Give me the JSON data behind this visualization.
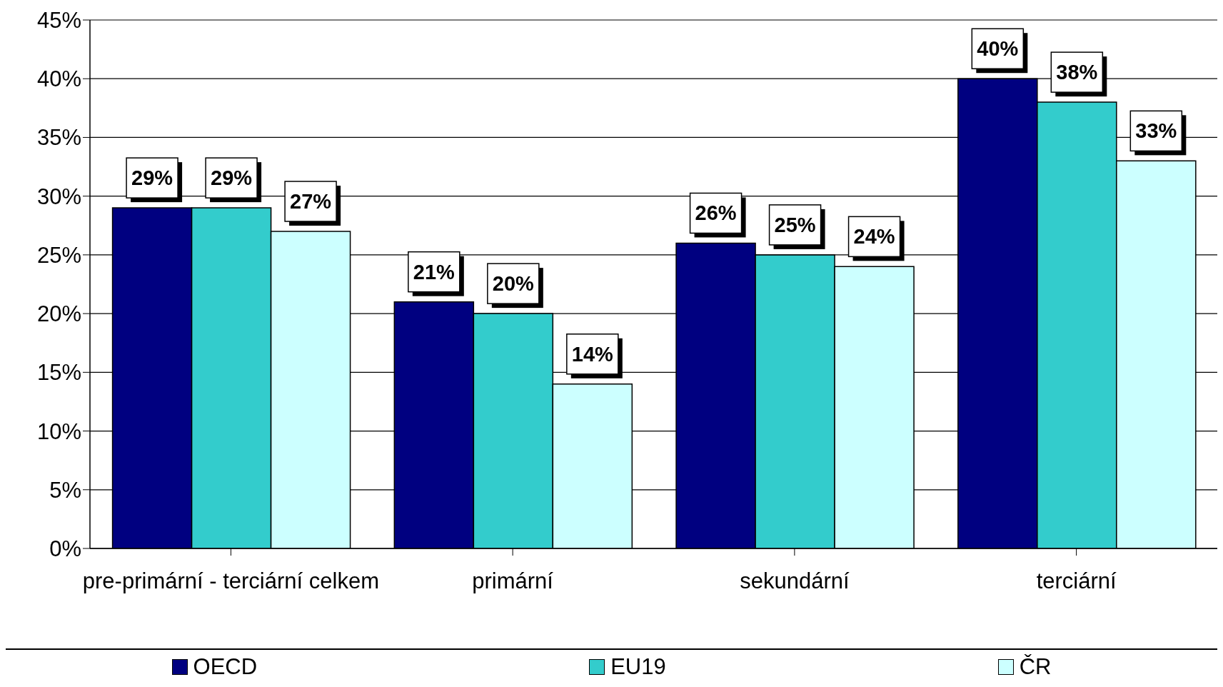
{
  "chart_data": {
    "type": "bar",
    "categories": [
      "pre-primární - terciární celkem",
      "primární",
      "sekundární",
      "terciární"
    ],
    "series": [
      {
        "name": "OECD",
        "color": "#000080",
        "values": [
          29,
          21,
          26,
          40
        ],
        "value_labels": [
          "29%",
          "21%",
          "26%",
          "40%"
        ]
      },
      {
        "name": "EU19",
        "color": "#33cccc",
        "values": [
          29,
          20,
          25,
          38
        ],
        "value_labels": [
          "29%",
          "20%",
          "25%",
          "38%"
        ]
      },
      {
        "name": "ČR",
        "color": "#ccffff",
        "values": [
          27,
          14,
          24,
          33
        ],
        "value_labels": [
          "27%",
          "14%",
          "24%",
          "33%"
        ]
      }
    ],
    "ylim": [
      0,
      45
    ],
    "yticks": [
      {
        "value": 0,
        "label": "0%"
      },
      {
        "value": 5,
        "label": "5%"
      },
      {
        "value": 10,
        "label": "10%"
      },
      {
        "value": 15,
        "label": "15%"
      },
      {
        "value": 20,
        "label": "20%"
      },
      {
        "value": 25,
        "label": "25%"
      },
      {
        "value": 30,
        "label": "30%"
      },
      {
        "value": 35,
        "label": "35%"
      },
      {
        "value": 40,
        "label": "40%"
      },
      {
        "value": 45,
        "label": "45%"
      }
    ],
    "grid": "y",
    "legend": "bottom"
  }
}
